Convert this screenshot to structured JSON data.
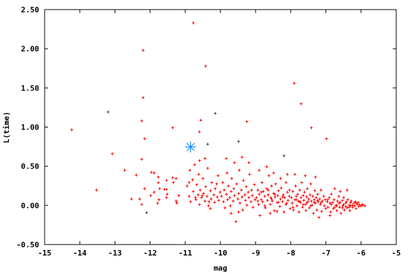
{
  "chart_data": {
    "type": "scatter",
    "title": "",
    "xlabel": "mag",
    "ylabel": "L(time)",
    "xlim": [
      -15,
      -5
    ],
    "ylim": [
      -0.5,
      2.5
    ],
    "xticks": [
      "-15",
      "-14",
      "-13",
      "-12",
      "-11",
      "-10",
      "-9",
      "-8",
      "-7",
      "-6",
      "-5"
    ],
    "yticks": [
      "-0.50",
      "0.00",
      "0.50",
      "1.00",
      "1.50",
      "2.00",
      "2.50"
    ],
    "grid": false,
    "legend": "none",
    "series": [
      {
        "color": "#ff0000",
        "marker": "plus",
        "points": [
          [
            -14.24,
            0.97
          ],
          [
            -13.54,
            0.2
          ],
          [
            -13.09,
            0.66
          ],
          [
            -12.73,
            0.45
          ],
          [
            -12.21,
            1.98
          ],
          [
            -12.21,
            1.38
          ],
          [
            -12.25,
            1.08
          ],
          [
            -12.17,
            0.86
          ],
          [
            -12.25,
            0.59
          ],
          [
            -11.37,
            1.0
          ],
          [
            -10.78,
            2.33
          ],
          [
            -10.43,
            1.78
          ],
          [
            -10.57,
            1.09
          ],
          [
            -9.26,
            1.07
          ],
          [
            -7.91,
            1.56
          ],
          [
            -7.71,
            1.3
          ],
          [
            -7.42,
            1.0
          ],
          [
            -6.99,
            0.86
          ],
          [
            -10.6,
            0.94
          ],
          [
            -12.4,
            0.39
          ],
          [
            -12.54,
            0.09
          ],
          [
            -12.3,
            0.09
          ],
          [
            -12.25,
            0.02
          ],
          [
            -12.17,
            0.22
          ],
          [
            -11.97,
            0.43
          ],
          [
            -11.9,
            0.42
          ],
          [
            -11.78,
            0.37
          ],
          [
            -11.78,
            0.3
          ],
          [
            -11.74,
            0.22
          ],
          [
            -11.9,
            0.17
          ],
          [
            -11.99,
            0.13
          ],
          [
            -11.8,
            0.03
          ],
          [
            -11.76,
            0.08
          ],
          [
            -11.54,
            0.32
          ],
          [
            -11.37,
            0.36
          ],
          [
            -11.27,
            0.35
          ],
          [
            -11.35,
            0.3
          ],
          [
            -11.6,
            0.21
          ],
          [
            -11.54,
            0.21
          ],
          [
            -11.52,
            0.15
          ],
          [
            -11.54,
            0.1
          ],
          [
            -11.27,
            0.06
          ],
          [
            -11.25,
            0.03
          ],
          [
            -11.19,
            0.13
          ],
          [
            -10.95,
            0.25
          ],
          [
            -10.9,
            0.12
          ],
          [
            -10.88,
            0.45
          ],
          [
            -10.85,
            0.05
          ],
          [
            -10.8,
            0.33
          ],
          [
            -10.78,
            0.18
          ],
          [
            -10.75,
            0.52
          ],
          [
            -10.7,
            0.08
          ],
          [
            -10.68,
            0.27
          ],
          [
            -10.65,
            0.14
          ],
          [
            -10.62,
            0.4
          ],
          [
            -10.6,
            0.02
          ],
          [
            -10.58,
            0.2
          ],
          [
            -10.55,
            0.1
          ],
          [
            -10.5,
            0.35
          ],
          [
            -10.48,
            0.16
          ],
          [
            -10.45,
            0.06
          ],
          [
            -10.42,
            0.24
          ],
          [
            -10.4,
            0.12
          ],
          [
            -10.38,
            0.48
          ],
          [
            -10.35,
            0.0
          ],
          [
            -10.3,
            0.19
          ],
          [
            -10.28,
            0.09
          ],
          [
            -10.25,
            0.3
          ],
          [
            -10.2,
            0.14
          ],
          [
            -10.18,
            0.04
          ],
          [
            -10.15,
            0.22
          ],
          [
            -10.1,
            0.11
          ],
          [
            -10.08,
            0.38
          ],
          [
            -10.05,
            0.07
          ],
          [
            -10.02,
            0.17
          ],
          [
            -10.9,
            0.3
          ],
          [
            -10.72,
            0.1
          ],
          [
            -10.52,
            0.13
          ],
          [
            -10.33,
            0.05
          ],
          [
            -10.12,
            0.28
          ],
          [
            -10.6,
            0.58
          ],
          [
            -10.45,
            0.6
          ],
          [
            -10.3,
            -0.04
          ],
          [
            -9.98,
            0.12
          ],
          [
            -9.95,
            0.3
          ],
          [
            -9.92,
            0.05
          ],
          [
            -9.9,
            0.2
          ],
          [
            -9.88,
            -0.03
          ],
          [
            -9.85,
            0.15
          ],
          [
            -9.82,
            0.42
          ],
          [
            -9.8,
            0.08
          ],
          [
            -9.78,
            0.25
          ],
          [
            -9.75,
            0.1
          ],
          [
            -9.72,
            0.0
          ],
          [
            -9.7,
            0.18
          ],
          [
            -9.68,
            0.35
          ],
          [
            -9.65,
            0.06
          ],
          [
            -9.62,
            0.22
          ],
          [
            -9.6,
            0.13
          ],
          [
            -9.58,
            -0.2
          ],
          [
            -9.55,
            0.28
          ],
          [
            -9.52,
            0.09
          ],
          [
            -9.5,
            0.16
          ],
          [
            -9.48,
            0.45
          ],
          [
            -9.45,
            0.03
          ],
          [
            -9.42,
            0.2
          ],
          [
            -9.4,
            0.11
          ],
          [
            -9.38,
            -0.05
          ],
          [
            -9.35,
            0.32
          ],
          [
            -9.32,
            0.14
          ],
          [
            -9.3,
            0.07
          ],
          [
            -9.28,
            0.24
          ],
          [
            -9.25,
            0.01
          ],
          [
            -9.22,
            0.17
          ],
          [
            -9.2,
            0.1
          ],
          [
            -9.18,
            0.4
          ],
          [
            -9.15,
            0.05
          ],
          [
            -9.12,
            0.2
          ],
          [
            -9.1,
            0.13
          ],
          [
            -9.08,
            -0.02
          ],
          [
            -9.05,
            0.27
          ],
          [
            -9.02,
            0.08
          ],
          [
            -9.6,
            0.55
          ],
          [
            -9.4,
            0.62
          ],
          [
            -9.2,
            0.55
          ],
          [
            -9.85,
            0.6
          ],
          [
            -9.5,
            -0.08
          ],
          [
            -9.7,
            -0.1
          ],
          [
            -8.98,
            0.1
          ],
          [
            -8.95,
            0.2
          ],
          [
            -8.93,
            0.02
          ],
          [
            -8.9,
            0.15
          ],
          [
            -8.88,
            -0.12
          ],
          [
            -8.85,
            0.08
          ],
          [
            -8.83,
            0.3
          ],
          [
            -8.8,
            0.05
          ],
          [
            -8.78,
            0.18
          ],
          [
            -8.75,
            0.12
          ],
          [
            -8.73,
            -0.03
          ],
          [
            -8.7,
            0.22
          ],
          [
            -8.68,
            0.07
          ],
          [
            -8.65,
            0.14
          ],
          [
            -8.63,
            0.38
          ],
          [
            -8.6,
            0.02
          ],
          [
            -8.58,
            0.1
          ],
          [
            -8.55,
            0.25
          ],
          [
            -8.53,
            0.06
          ],
          [
            -8.5,
            0.16
          ],
          [
            -8.48,
            -0.06
          ],
          [
            -8.45,
            0.11
          ],
          [
            -8.43,
            0.28
          ],
          [
            -8.4,
            0.04
          ],
          [
            -8.38,
            0.13
          ],
          [
            -8.35,
            0.19
          ],
          [
            -8.33,
            -0.01
          ],
          [
            -8.3,
            0.09
          ],
          [
            -8.28,
            0.23
          ],
          [
            -8.25,
            0.05
          ],
          [
            -8.23,
            0.14
          ],
          [
            -8.2,
            -0.08
          ],
          [
            -8.18,
            0.1
          ],
          [
            -8.15,
            0.3
          ],
          [
            -8.13,
            0.03
          ],
          [
            -8.1,
            0.17
          ],
          [
            -8.08,
            0.07
          ],
          [
            -8.05,
            0.12
          ],
          [
            -8.03,
            -0.04
          ],
          [
            -8.9,
            0.45
          ],
          [
            -8.7,
            0.5
          ],
          [
            -8.5,
            0.42
          ],
          [
            -8.3,
            0.35
          ],
          [
            -8.1,
            0.4
          ],
          [
            -8.6,
            -0.1
          ],
          [
            -8.4,
            -0.07
          ],
          [
            -8.95,
            0.06
          ],
          [
            -8.75,
            0.0
          ],
          [
            -8.55,
            0.09
          ],
          [
            -8.35,
            0.04
          ],
          [
            -8.15,
            0.02
          ],
          [
            -8.85,
            0.17
          ],
          [
            -8.65,
            0.2
          ],
          [
            -8.45,
            0.15
          ],
          [
            -8.25,
            0.11
          ],
          [
            -8.05,
            0.2
          ],
          [
            -7.98,
            0.1
          ],
          [
            -7.96,
            0.03
          ],
          [
            -7.94,
            0.18
          ],
          [
            -7.92,
            -0.05
          ],
          [
            -7.9,
            0.08
          ],
          [
            -7.88,
            0.25
          ],
          [
            -7.86,
            0.12
          ],
          [
            -7.84,
            0.0
          ],
          [
            -7.82,
            0.15
          ],
          [
            -7.8,
            0.06
          ],
          [
            -7.78,
            -0.08
          ],
          [
            -7.76,
            0.2
          ],
          [
            -7.74,
            0.04
          ],
          [
            -7.72,
            0.1
          ],
          [
            -7.7,
            0.3
          ],
          [
            -7.68,
            -0.02
          ],
          [
            -7.66,
            0.13
          ],
          [
            -7.64,
            0.07
          ],
          [
            -7.62,
            0.17
          ],
          [
            -7.6,
            0.02
          ],
          [
            -7.58,
            -0.06
          ],
          [
            -7.56,
            0.11
          ],
          [
            -7.54,
            0.22
          ],
          [
            -7.52,
            0.05
          ],
          [
            -7.5,
            0.09
          ],
          [
            -7.48,
            -0.03
          ],
          [
            -7.46,
            0.14
          ],
          [
            -7.44,
            0.28
          ],
          [
            -7.42,
            0.06
          ],
          [
            -7.4,
            0.01
          ],
          [
            -7.38,
            0.12
          ],
          [
            -7.36,
            -0.1
          ],
          [
            -7.34,
            0.08
          ],
          [
            -7.32,
            0.19
          ],
          [
            -7.3,
            0.03
          ],
          [
            -7.28,
            0.1
          ],
          [
            -7.26,
            -0.05
          ],
          [
            -7.24,
            0.15
          ],
          [
            -7.22,
            0.05
          ],
          [
            -7.2,
            -0.15
          ],
          [
            -7.18,
            0.09
          ],
          [
            -7.16,
            0.02
          ],
          [
            -7.14,
            0.2
          ],
          [
            -7.12,
            -0.07
          ],
          [
            -7.1,
            0.06
          ],
          [
            -7.08,
            0.12
          ],
          [
            -7.06,
            0.0
          ],
          [
            -7.04,
            0.08
          ],
          [
            -7.02,
            -0.04
          ],
          [
            -7.9,
            0.4
          ],
          [
            -7.6,
            0.38
          ],
          [
            -7.3,
            0.37
          ],
          [
            -7.75,
            0.05
          ],
          [
            -7.45,
            0.0
          ],
          [
            -7.15,
            0.04
          ],
          [
            -7.85,
            0.08
          ],
          [
            -7.55,
            0.03
          ],
          [
            -7.25,
            0.07
          ],
          [
            -7.95,
            -0.02
          ],
          [
            -7.65,
            0.02
          ],
          [
            -7.35,
            0.04
          ],
          [
            -6.98,
            0.05
          ],
          [
            -6.95,
            -0.02
          ],
          [
            -6.92,
            0.1
          ],
          [
            -6.9,
            0.03
          ],
          [
            -6.88,
            -0.08
          ],
          [
            -6.85,
            0.15
          ],
          [
            -6.82,
            0.04
          ],
          [
            -6.8,
            -0.04
          ],
          [
            -6.78,
            0.08
          ],
          [
            -6.75,
            0.22
          ],
          [
            -6.72,
            0.01
          ],
          [
            -6.7,
            -0.06
          ],
          [
            -6.68,
            0.06
          ],
          [
            -6.65,
            0.12
          ],
          [
            -6.62,
            -0.02
          ],
          [
            -6.6,
            0.04
          ],
          [
            -6.58,
            -0.1
          ],
          [
            -6.55,
            0.07
          ],
          [
            -6.52,
            0.0
          ],
          [
            -6.5,
            0.1
          ],
          [
            -6.48,
            -0.05
          ],
          [
            -6.45,
            0.03
          ],
          [
            -6.42,
            0.05
          ],
          [
            -6.4,
            -0.03
          ],
          [
            -6.38,
            0.08
          ],
          [
            -6.35,
            0.01
          ],
          [
            -6.32,
            -0.06
          ],
          [
            -6.3,
            0.04
          ],
          [
            -6.28,
            0.06
          ],
          [
            -6.25,
            -0.02
          ],
          [
            -6.22,
            0.03
          ],
          [
            -6.2,
            0.0
          ],
          [
            -6.18,
            0.05
          ],
          [
            -6.15,
            -0.04
          ],
          [
            -6.12,
            0.02
          ],
          [
            -6.1,
            0.04
          ],
          [
            -6.08,
            -0.01
          ],
          [
            -6.05,
            0.02
          ],
          [
            -6.02,
            0.0
          ],
          [
            -5.98,
            0.01
          ],
          [
            -5.95,
            0.02
          ],
          [
            -6.6,
            0.18
          ],
          [
            -6.4,
            0.2
          ],
          [
            -6.9,
            -0.12
          ],
          [
            -6.7,
            0.0
          ],
          [
            -6.5,
            0.02
          ],
          [
            -6.3,
            0.0
          ],
          [
            -6.85,
            0.02
          ],
          [
            -6.65,
            0.03
          ],
          [
            -6.45,
            -0.01
          ],
          [
            -6.25,
            0.01
          ],
          [
            -6.15,
            0.03
          ],
          [
            -6.35,
            -0.02
          ],
          [
            -6.55,
            -0.03
          ],
          [
            -6.75,
            -0.02
          ],
          [
            -6.95,
            0.08
          ],
          [
            -5.9,
            0.0
          ]
        ]
      },
      {
        "color": "#404040",
        "marker": "plus",
        "points": [
          [
            -13.2,
            1.2
          ],
          [
            -12.1,
            -0.09
          ],
          [
            -10.16,
            1.18
          ],
          [
            -10.37,
            0.79
          ],
          [
            -9.5,
            0.82
          ],
          [
            -8.2,
            0.64
          ]
        ]
      },
      {
        "color": "#1e90ff",
        "marker": "star",
        "points": [
          [
            -10.85,
            0.75
          ]
        ]
      }
    ]
  }
}
